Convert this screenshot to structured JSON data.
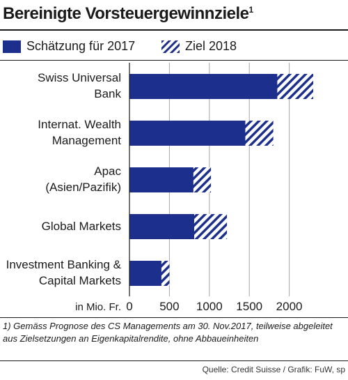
{
  "header": {
    "title": "Bereinigte Vorsteuergewinnziele",
    "title_footnote_marker": "1"
  },
  "legend": {
    "items": [
      {
        "label": "Schätzung für 2017",
        "style": "solid"
      },
      {
        "label": "Ziel 2018",
        "style": "hatched"
      }
    ]
  },
  "chart_data": {
    "type": "bar",
    "orientation": "horizontal",
    "stacked_overlay": true,
    "title": "Bereinigte Vorsteuergewinnziele",
    "categories": [
      [
        "Swiss Universal",
        "Bank"
      ],
      [
        "Internat. Wealth",
        "Management"
      ],
      [
        "Apac",
        "(Asien/Pazifik)"
      ],
      [
        "Global Markets"
      ],
      [
        "Investment Banking &",
        "Capital Markets"
      ]
    ],
    "series": [
      {
        "name": "Schätzung für 2017",
        "values": [
          1850,
          1450,
          800,
          810,
          400
        ],
        "color": "#1c2f8c",
        "pattern": "solid"
      },
      {
        "name": "Ziel 2018",
        "values": [
          2300,
          1800,
          1020,
          1220,
          500
        ],
        "color": "#1c2f8c",
        "pattern": "hatched"
      }
    ],
    "xlabel": "in Mio. Fr.",
    "xlim": [
      0,
      2500
    ],
    "xticks": [
      0,
      500,
      1000,
      1500,
      2000
    ],
    "xtick_labels": [
      "0",
      "500",
      "1000",
      "1500",
      "2000"
    ],
    "grid": true,
    "legend_position": "top"
  },
  "footnote": "1) Gemäss Prognose des CS Managements am 30. Nov.2017, teilweise abgeleitet aus Zielsetzungen an Eigenkapitalrendite, ohne Abbaueinheiten",
  "source": "Quelle: Credit Suisse / Grafik: FuW, sp",
  "colors": {
    "bar": "#1c2f8c",
    "grid": "#a6a6a6",
    "rule": "#1a1a1a"
  }
}
